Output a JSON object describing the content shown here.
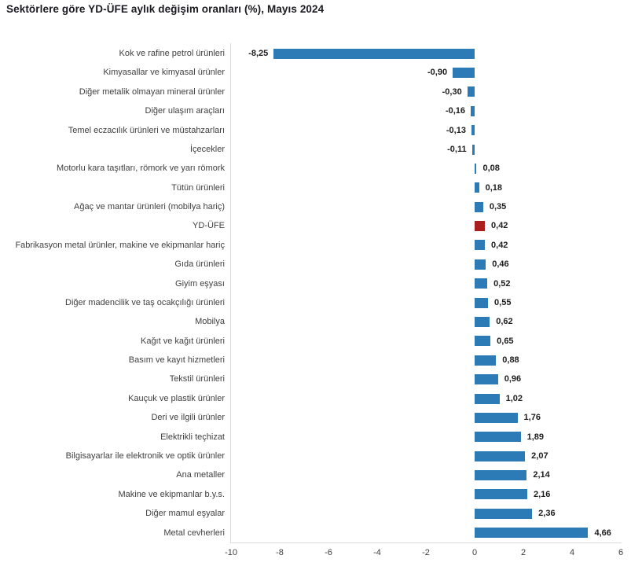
{
  "header": {
    "title": "Sektörlere göre YD-ÜFE aylık değişim oranları (%), Mayıs 2024"
  },
  "chart_data": {
    "type": "bar",
    "orientation": "horizontal",
    "title": "Sektörlere göre YD-ÜFE aylık değişim oranları (%), Mayıs 2024",
    "categories": [
      "Kok ve rafine petrol ürünleri",
      "Kimyasallar ve kimyasal ürünler",
      "Diğer metalik olmayan mineral ürünler",
      "Diğer ulaşım araçları",
      "Temel eczacılık ürünleri ve müstahzarları",
      "İçecekler",
      "Motorlu kara taşıtları, römork ve yarı römork",
      "Tütün ürünleri",
      "Ağaç ve mantar ürünleri (mobilya hariç)",
      "YD-ÜFE",
      "Fabrikasyon metal ürünler, makine ve ekipmanlar hariç",
      "Gıda ürünleri",
      "Giyim eşyası",
      "Diğer madencilik ve taş ocakçılığı ürünleri",
      "Mobilya",
      "Kağıt ve kağıt ürünleri",
      "Basım ve kayıt hizmetleri",
      "Tekstil ürünleri",
      "Kauçuk ve plastik ürünler",
      "Deri ve ilgili ürünler",
      "Elektrikli teçhizat",
      "Bilgisayarlar ile elektronik ve optik ürünler",
      "Ana metaller",
      "Makine ve ekipmanlar b.y.s.",
      "Diğer mamul eşyalar",
      "Metal cevherleri"
    ],
    "values": [
      -8.25,
      -0.9,
      -0.3,
      -0.16,
      -0.13,
      -0.11,
      0.08,
      0.18,
      0.35,
      0.42,
      0.42,
      0.46,
      0.52,
      0.55,
      0.62,
      0.65,
      0.88,
      0.96,
      1.02,
      1.76,
      1.89,
      2.07,
      2.14,
      2.16,
      2.36,
      4.66
    ],
    "value_labels": [
      "-8,25",
      "-0,90",
      "-0,30",
      "-0,16",
      "-0,13",
      "-0,11",
      "0,08",
      "0,18",
      "0,35",
      "0,42",
      "0,42",
      "0,46",
      "0,52",
      "0,55",
      "0,62",
      "0,65",
      "0,88",
      "0,96",
      "1,02",
      "1,76",
      "1,89",
      "2,07",
      "2,14",
      "2,16",
      "2,36",
      "4,66"
    ],
    "highlight_index": 9,
    "highlight_category": "YD-ÜFE",
    "colors": {
      "bar": "#2d7bb6",
      "highlight_bar": "#aa1e1e",
      "axis_line": "#dcdcdc",
      "category_text": "#404040",
      "value_text": "#1d1d1d"
    },
    "xlabel": "",
    "ylabel": "",
    "xlim": [
      -10,
      6
    ],
    "x_ticks": [
      -10,
      -8,
      -6,
      -4,
      -2,
      0,
      2,
      4,
      6
    ],
    "grid": false,
    "legend": "none"
  }
}
